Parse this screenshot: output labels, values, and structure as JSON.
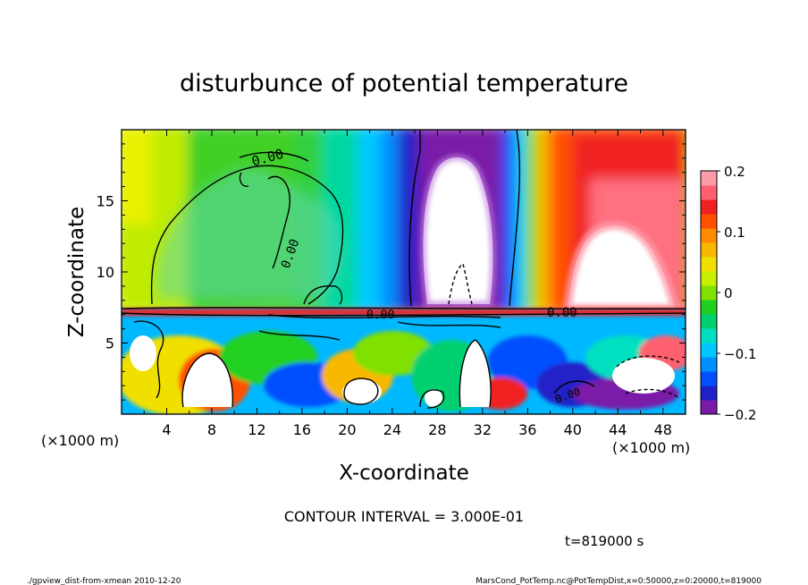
{
  "chart_data": {
    "type": "heatmap",
    "title": "disturbunce of potential temperature",
    "xlabel": "X-coordinate",
    "ylabel": "Z-coordinate",
    "x_unit_label": "(×1000 m)",
    "y_unit_label": "(×1000 m)",
    "xlim": [
      0,
      50
    ],
    "ylim": [
      0,
      20
    ],
    "x_ticks": [
      4,
      8,
      12,
      16,
      20,
      24,
      28,
      32,
      36,
      40,
      44,
      48
    ],
    "y_ticks": [
      5,
      10,
      15
    ],
    "colorbar": {
      "range": [
        -0.2,
        0.2
      ],
      "ticks": [
        0.2,
        0.1,
        0,
        -0.1,
        -0.2
      ],
      "tick_labels": [
        "0.2",
        "0.1",
        "0",
        "−0.1",
        "−0.2"
      ],
      "colors": [
        "#7a1aa8",
        "#2020c8",
        "#0050ff",
        "#0090ff",
        "#00c8ff",
        "#00e0c0",
        "#00d070",
        "#20d020",
        "#80e000",
        "#c8f000",
        "#f0e000",
        "#f8b800",
        "#ff8c00",
        "#ff5000",
        "#f02020",
        "#ff6070",
        "#ff9aa8"
      ]
    },
    "contour_interval_text": "CONTOUR INTERVAL = 3.000E-01",
    "contour_labels": [
      "0.00",
      "0.00",
      "0.00",
      "0.00",
      "0.00"
    ],
    "time_text": "t=819000 s",
    "grid": false
  },
  "footer": {
    "left": "./gpview_dist-from-xmean  2010-12-20",
    "right": "MarsCond_PotTemp.nc@PotTempDist,x=0:50000,z=0:20000,t=819000"
  }
}
